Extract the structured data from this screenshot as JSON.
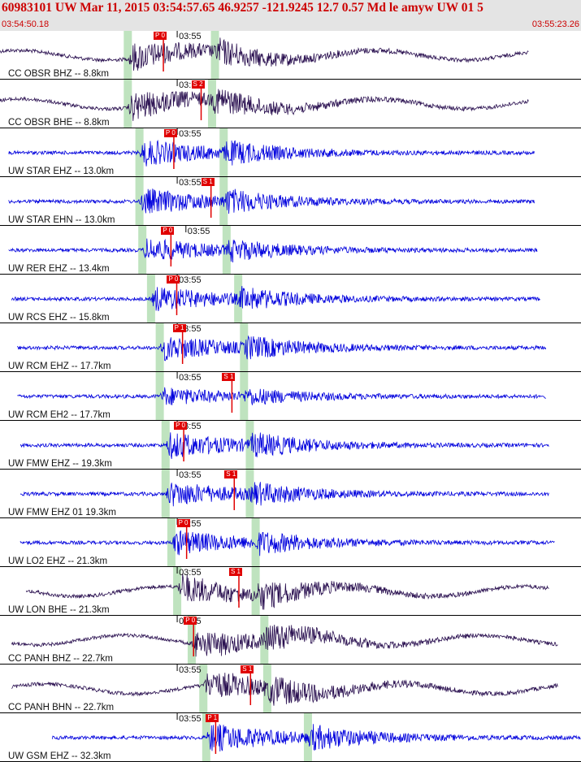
{
  "header": {
    "title": "60983101 UW Mar 11, 2015 03:54:57.65   46.9257 -121.9245 12.7 0.57 Md le amyw UW 01   5",
    "start_time": "03:54:50.18",
    "end_time": "03:55:23.26"
  },
  "tick_label": "03:55",
  "colors": {
    "short_period": "#0000dd",
    "broadband": "#2a1050",
    "pick": "#e00000",
    "window": "#bfe3bf"
  },
  "channels": [
    {
      "label": "CC OBSR BHZ -- 8.8km",
      "color": "broadband",
      "pick": "P 0",
      "p_frac": 0.22,
      "s_frac": 0.37,
      "pick_frac": 0.27,
      "tick_frac": 0.305,
      "extent": [
        0.0,
        0.91
      ],
      "big": 1.0
    },
    {
      "label": "CC OBSR BHE -- 8.8km",
      "color": "broadband",
      "pick": "S 2",
      "p_frac": 0.22,
      "s_frac": 0.365,
      "pick_frac": 0.335,
      "tick_frac": 0.305,
      "extent": [
        0.0,
        0.91
      ],
      "big": 1.0
    },
    {
      "label": "UW STAR EHZ -- 13.0km",
      "color": "short_period",
      "pick": "P 0",
      "p_frac": 0.24,
      "s_frac": 0.385,
      "pick_frac": 0.288,
      "tick_frac": 0.305,
      "extent": [
        0.015,
        0.92
      ],
      "big": 0.9
    },
    {
      "label": "UW STAR EHN -- 13.0km",
      "color": "short_period",
      "pick": "S 1",
      "p_frac": 0.24,
      "s_frac": 0.385,
      "pick_frac": 0.352,
      "tick_frac": 0.305,
      "extent": [
        0.015,
        0.92
      ],
      "big": 0.9
    },
    {
      "label": "UW RER EHZ -- 13.4km",
      "color": "short_period",
      "pick": "P 0",
      "p_frac": 0.245,
      "s_frac": 0.39,
      "pick_frac": 0.283,
      "tick_frac": 0.32,
      "extent": [
        0.015,
        0.925
      ],
      "big": 0.8
    },
    {
      "label": "UW RCS EHZ -- 15.8km",
      "color": "short_period",
      "pick": "P 0",
      "p_frac": 0.26,
      "s_frac": 0.41,
      "pick_frac": 0.293,
      "tick_frac": 0.305,
      "extent": [
        0.02,
        0.93
      ],
      "big": 0.85
    },
    {
      "label": "UW RCM EHZ -- 17.7km",
      "color": "short_period",
      "pick": "P 1",
      "p_frac": 0.275,
      "s_frac": 0.42,
      "pick_frac": 0.303,
      "tick_frac": 0.305,
      "extent": [
        0.03,
        0.94
      ],
      "big": 0.85
    },
    {
      "label": "UW RCM EH2 -- 17.7km",
      "color": "short_period",
      "pick": "S 1",
      "p_frac": 0.275,
      "s_frac": 0.42,
      "pick_frac": 0.388,
      "tick_frac": 0.305,
      "extent": [
        0.03,
        0.94
      ],
      "big": 0.6
    },
    {
      "label": "UW FMW EHZ -- 19.3km",
      "color": "short_period",
      "pick": "P 0",
      "p_frac": 0.285,
      "s_frac": 0.43,
      "pick_frac": 0.305,
      "tick_frac": 0.305,
      "extent": [
        0.035,
        0.945
      ],
      "big": 0.9
    },
    {
      "label": "UW FMW EHZ 01 19.3km",
      "color": "short_period",
      "pick": "S 1",
      "p_frac": 0.285,
      "s_frac": 0.43,
      "pick_frac": 0.392,
      "tick_frac": 0.305,
      "extent": [
        0.035,
        0.945
      ],
      "big": 0.85
    },
    {
      "label": "UW LO2 EHZ -- 21.3km",
      "color": "short_period",
      "pick": "P 0",
      "p_frac": 0.295,
      "s_frac": 0.44,
      "pick_frac": 0.31,
      "tick_frac": 0.305,
      "extent": [
        0.035,
        0.955
      ],
      "big": 0.85
    },
    {
      "label": "UW LON BHE -- 21.3km",
      "color": "broadband",
      "pick": "S 1",
      "p_frac": 0.305,
      "s_frac": 0.44,
      "pick_frac": 0.4,
      "tick_frac": 0.305,
      "extent": [
        0.045,
        0.945
      ],
      "big": 1.0
    },
    {
      "label": "CC PANH BHZ -- 22.7km",
      "color": "broadband",
      "pick": "P 0",
      "p_frac": 0.33,
      "s_frac": 0.455,
      "pick_frac": 0.322,
      "tick_frac": 0.305,
      "extent": [
        0.02,
        0.96
      ],
      "big": 1.0
    },
    {
      "label": "CC PANH BHN -- 22.7km",
      "color": "broadband",
      "pick": "S 1",
      "p_frac": 0.35,
      "s_frac": 0.46,
      "pick_frac": 0.42,
      "tick_frac": 0.305,
      "extent": [
        0.02,
        0.96
      ],
      "big": 1.0
    },
    {
      "label": "UW GSM EHZ -- 32.3km",
      "color": "short_period",
      "pick": "P 1",
      "p_frac": 0.355,
      "s_frac": 0.53,
      "pick_frac": 0.36,
      "tick_frac": 0.305,
      "extent": [
        0.09,
        1.0
      ],
      "big": 1.0
    }
  ]
}
